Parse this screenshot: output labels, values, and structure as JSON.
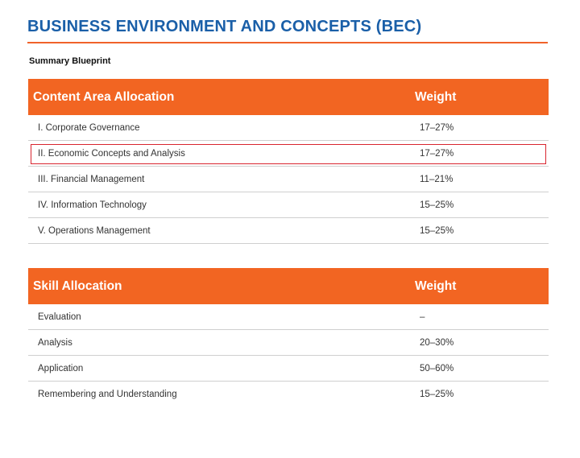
{
  "page": {
    "title": "BUSINESS ENVIRONMENT AND CONCEPTS (BEC)",
    "subtitle": "Summary Blueprint"
  },
  "colors": {
    "title": "#1a5fa8",
    "accent": "#f26522",
    "highlight_border": "#d9252f"
  },
  "content_table": {
    "header_left": "Content Area Allocation",
    "header_right": "Weight",
    "rows": [
      {
        "label": "I. Corporate Governance",
        "weight": "17–27%"
      },
      {
        "label": "II. Economic Concepts and Analysis",
        "weight": "17–27%"
      },
      {
        "label": "III. Financial Management",
        "weight": "11–21%"
      },
      {
        "label": "IV. Information Technology",
        "weight": "15–25%"
      },
      {
        "label": "V. Operations Management",
        "weight": "15–25%"
      }
    ]
  },
  "skill_table": {
    "header_left": "Skill Allocation",
    "header_right": "Weight",
    "rows": [
      {
        "label": "Evaluation",
        "weight": "–"
      },
      {
        "label": "Analysis",
        "weight": "20–30%"
      },
      {
        "label": "Application",
        "weight": "50–60%"
      },
      {
        "label": "Remembering and Understanding",
        "weight": "15–25%"
      }
    ]
  }
}
